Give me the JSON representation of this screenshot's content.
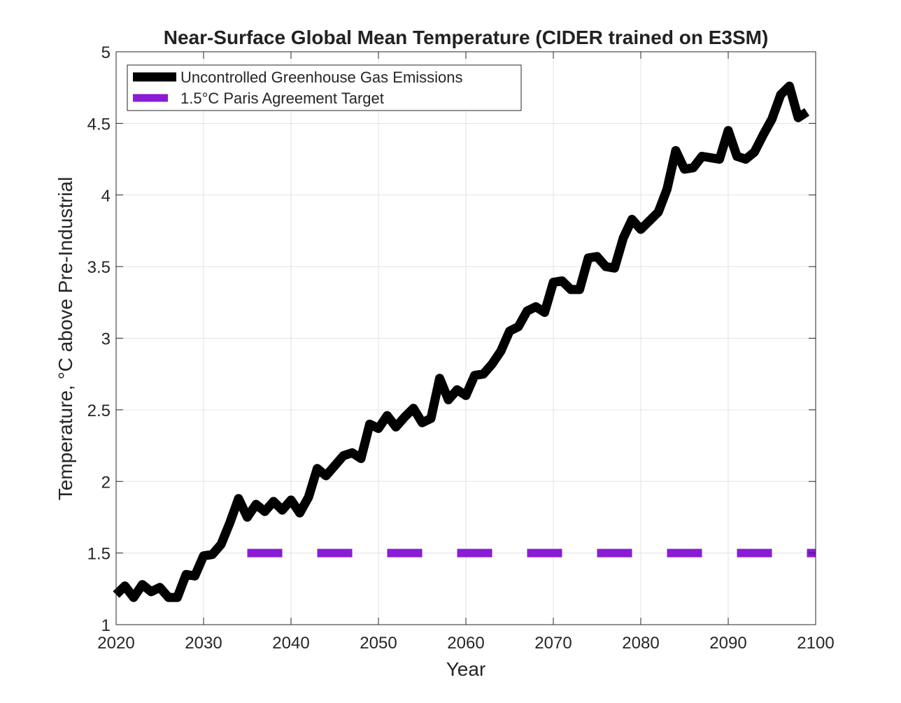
{
  "chart_data": {
    "type": "line",
    "title": "Near-Surface Global Mean Temperature (CIDER trained on E3SM)",
    "xlabel": "Year",
    "ylabel": "Temperature, °C above Pre-Industrial",
    "xlim": [
      2020,
      2100
    ],
    "ylim": [
      1,
      5
    ],
    "xticks": [
      2020,
      2030,
      2040,
      2050,
      2060,
      2070,
      2080,
      2090,
      2100
    ],
    "yticks": [
      1,
      1.5,
      2,
      2.5,
      3,
      3.5,
      4,
      4.5,
      5
    ],
    "ytick_labels": [
      "1",
      "1.5",
      "2",
      "2.5",
      "3",
      "3.5",
      "4",
      "4.5",
      "5"
    ],
    "grid": true,
    "legend_position": "top-left",
    "series": [
      {
        "name": "Uncontrolled Greenhouse Gas Emissions",
        "color": "#000000",
        "style": "solid",
        "x": [
          2020,
          2021,
          2022,
          2023,
          2024,
          2025,
          2026,
          2027,
          2028,
          2029,
          2030,
          2031,
          2032,
          2033,
          2034,
          2035,
          2036,
          2037,
          2038,
          2039,
          2040,
          2041,
          2042,
          2043,
          2044,
          2045,
          2046,
          2047,
          2048,
          2049,
          2050,
          2051,
          2052,
          2053,
          2054,
          2055,
          2056,
          2057,
          2058,
          2059,
          2060,
          2061,
          2062,
          2063,
          2064,
          2065,
          2066,
          2067,
          2068,
          2069,
          2070,
          2071,
          2072,
          2073,
          2074,
          2075,
          2076,
          2077,
          2078,
          2079,
          2080,
          2081,
          2082,
          2083,
          2084,
          2085,
          2086,
          2087,
          2088,
          2089,
          2090,
          2091,
          2092,
          2093,
          2094,
          2095,
          2096,
          2097,
          2098,
          2099
        ],
        "values": [
          1.21,
          1.27,
          1.19,
          1.28,
          1.23,
          1.26,
          1.19,
          1.19,
          1.35,
          1.34,
          1.48,
          1.49,
          1.56,
          1.71,
          1.88,
          1.75,
          1.84,
          1.79,
          1.86,
          1.8,
          1.87,
          1.78,
          1.89,
          2.09,
          2.04,
          2.11,
          2.18,
          2.2,
          2.16,
          2.4,
          2.37,
          2.46,
          2.38,
          2.45,
          2.51,
          2.41,
          2.44,
          2.72,
          2.57,
          2.64,
          2.6,
          2.74,
          2.75,
          2.82,
          2.91,
          3.05,
          3.08,
          3.19,
          3.22,
          3.18,
          3.39,
          3.4,
          3.34,
          3.34,
          3.56,
          3.57,
          3.5,
          3.49,
          3.7,
          3.83,
          3.76,
          3.82,
          3.88,
          4.04,
          4.31,
          4.18,
          4.19,
          4.27,
          4.26,
          4.25,
          4.45,
          4.27,
          4.25,
          4.3,
          4.42,
          4.53,
          4.7,
          4.76,
          4.54,
          4.58
        ]
      },
      {
        "name": "1.5°C Paris Agreement Target",
        "color": "#8a1bd6",
        "style": "dashed",
        "x": [
          2035,
          2100
        ],
        "values": [
          1.5,
          1.5
        ]
      }
    ]
  }
}
